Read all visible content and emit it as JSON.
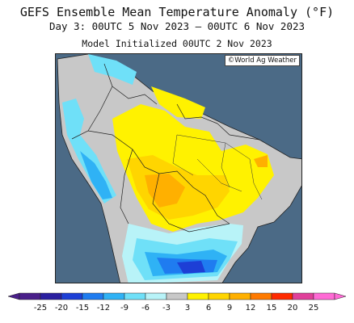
{
  "title": "GEFS Ensemble Mean Temperature Anomaly (°F)",
  "valid_line": "Day 3: 00UTC 5 Nov 2023 — 00UTC 6 Nov 2023",
  "init_line": "Model Initialized 00UTC 2 Nov 2023",
  "credit": "©World Ag Weather",
  "legend": {
    "unit": "°F",
    "ticks": [
      "-25",
      "-20",
      "-15",
      "-12",
      "-9",
      "-6",
      "-3",
      "3",
      "6",
      "9",
      "12",
      "15",
      "20",
      "25"
    ],
    "bin_colors": [
      "#4a1f8a",
      "#2a1fa0",
      "#1d3fd6",
      "#1f7cf0",
      "#2fb2f5",
      "#6fe0f8",
      "#b8f3f8",
      "#c8c8c8",
      "#fff200",
      "#ffd500",
      "#ffb000",
      "#ff7a00",
      "#ff2a00",
      "#e0409a",
      "#ff6ad5"
    ]
  },
  "map": {
    "colors": {
      "ocean": "#4b6a86",
      "neutral_land": "#c8c8c8",
      "light_cyan": "#b8f3f8",
      "cyan": "#6fe0f8",
      "sky": "#2fb2f5",
      "blue": "#1f7cf0",
      "dark_blue": "#1d3fd6",
      "yellow": "#fff200",
      "gold": "#ffd500",
      "orange": "#ffb000",
      "borders": "#222222"
    }
  }
}
